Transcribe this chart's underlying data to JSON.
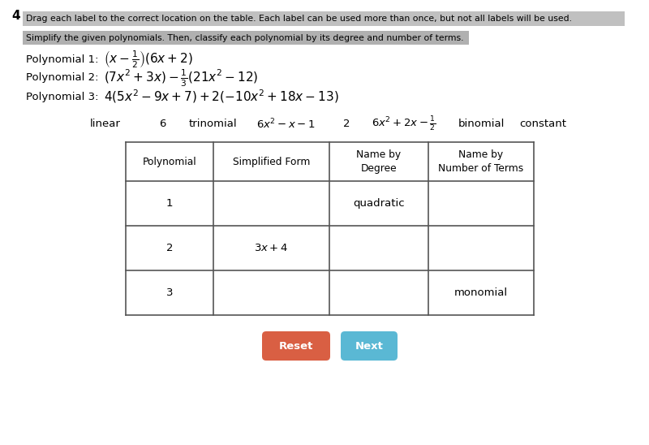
{
  "page_num": "4",
  "instruction1": "Drag each label to the correct location on the table. Each label can be used more than once, but not all labels will be used.",
  "instruction2": "Simplify the given polynomials. Then, classify each polynomial by its degree and number of terms.",
  "reset_btn_color": "#d95f43",
  "next_btn_color": "#5ab8d4",
  "reset_btn_text": "Reset",
  "next_btn_text": "Next",
  "bg_color": "#ffffff",
  "instruction1_bg": "#c0c0c0",
  "instruction2_bg": "#b0b0b0"
}
